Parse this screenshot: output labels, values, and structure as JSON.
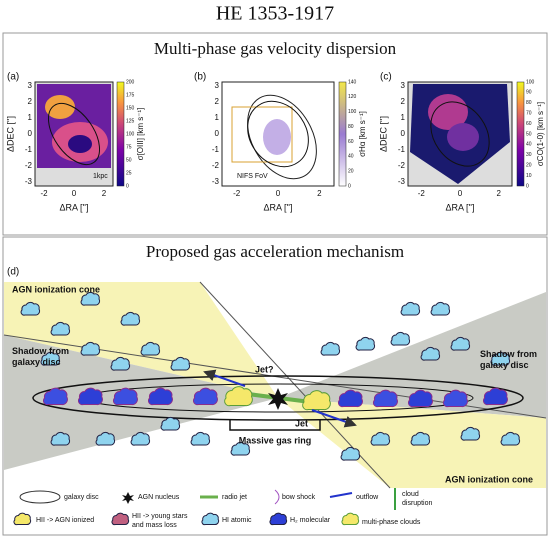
{
  "title": "HE 1353-1917",
  "top_panel": {
    "title": "Multi-phase gas velocity dispersion",
    "panels": [
      {
        "label": "(a)",
        "ylabel": "ΔDEC ['']",
        "xlabel": "ΔRA ['']",
        "yticks": [
          3,
          2,
          1,
          0,
          -1,
          -2,
          -3
        ],
        "xticks": [
          -2,
          0,
          2
        ],
        "cbar_label": "σ[OIII] [km s⁻¹]",
        "cbar_ticks": [
          0,
          25,
          50,
          75,
          100,
          125,
          150,
          175,
          200
        ],
        "annotation": "1kpc"
      },
      {
        "label": "(b)",
        "xlabel": "ΔRA ['']",
        "yticks": [
          3,
          2,
          1,
          0,
          -1,
          -2,
          -3
        ],
        "xticks": [
          -2,
          0,
          2
        ],
        "cbar_label": "σHα [km s⁻¹]",
        "cbar_ticks": [
          0,
          20,
          40,
          60,
          80,
          100,
          120,
          140
        ],
        "annotation": "NIFS FoV"
      },
      {
        "label": "(c)",
        "ylabel": "ΔDEC ['']",
        "xlabel": "ΔRA ['']",
        "yticks": [
          3,
          2,
          1,
          0,
          -1,
          -2,
          -3
        ],
        "xticks": [
          -2,
          0,
          2
        ],
        "cbar_label": "σCO(1-0) [km s⁻¹]",
        "cbar_ticks": [
          0,
          10,
          20,
          30,
          40,
          50,
          60,
          70,
          80,
          90,
          100
        ]
      }
    ]
  },
  "bottom_panel": {
    "title": "Proposed gas acceleration mechanism",
    "label": "(d)",
    "cone_top_left": "AGN ionization cone",
    "shadow_left": {
      "lines": [
        "Shadow from",
        "galaxy disc"
      ]
    },
    "shadow_right": {
      "lines": [
        "Shadow from",
        "galaxy disc"
      ]
    },
    "jet_top": "Jet?",
    "jet_bottom": "Jet",
    "ring": "Massive gas ring",
    "cone_bottom_right": "AGN ionization cone",
    "legend": {
      "galaxy_disc": "galaxy disc",
      "agn_nucleus": "AGN nucleus",
      "radio_jet": "radio jet",
      "bow_shock": "bow shock",
      "outflow": "outflow",
      "cloud_disruption": {
        "lines": [
          "cloud",
          "disruption"
        ]
      },
      "hii_agn": "HII -> AGN ionized",
      "hii_stars": {
        "lines": [
          "HII -> young stars",
          "and mass loss"
        ]
      },
      "hi": "HI atomic",
      "h2": "H₂ molecular",
      "multi": "multi-phase clouds"
    }
  }
}
